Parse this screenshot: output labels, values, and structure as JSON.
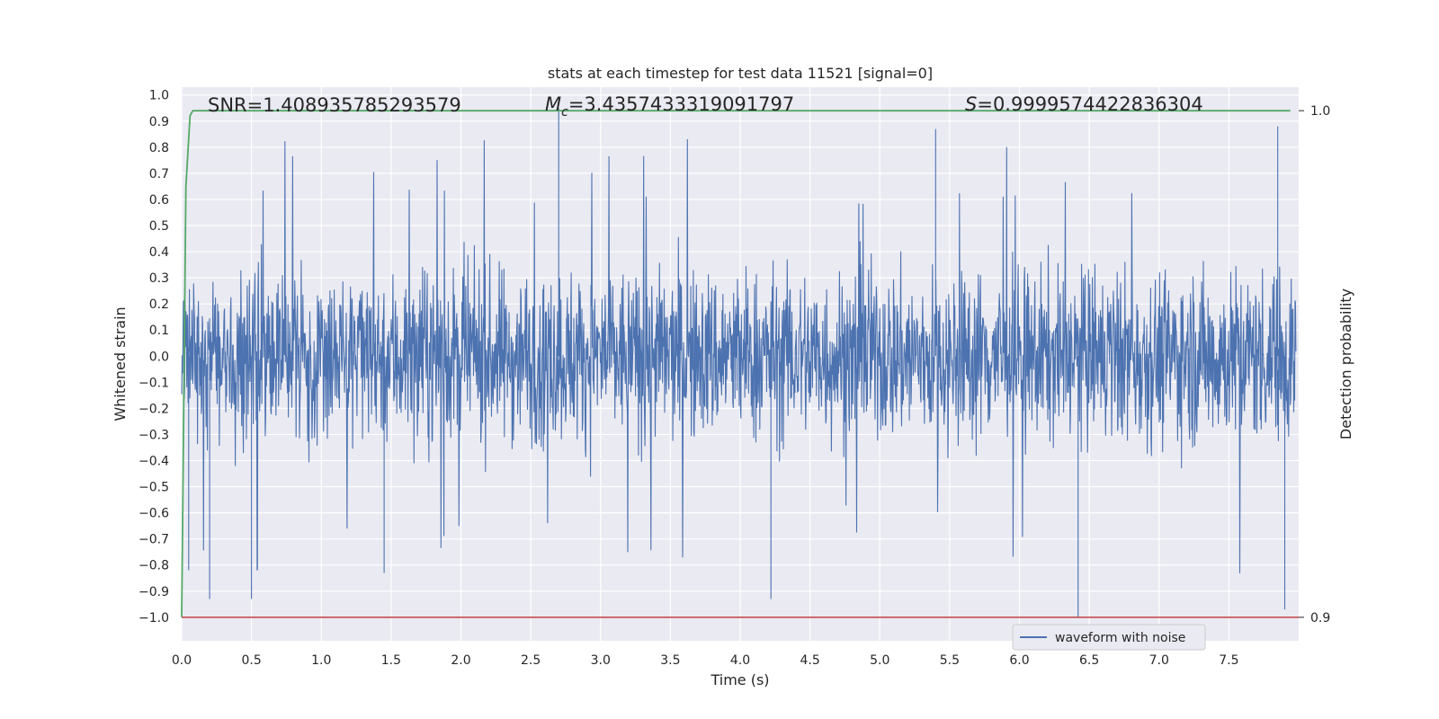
{
  "chart_data": {
    "type": "line",
    "title": "stats at each timestep for test data 11521 [signal=0]",
    "xlabel": "Time (s)",
    "ylabel": "Whitened strain",
    "y2label": "Detection probability",
    "xlim": [
      0.0,
      8.0
    ],
    "ylim": [
      -1.09,
      1.03
    ],
    "y2lim": [
      0.9,
      1.0
    ],
    "x_ticks": [
      "0.0",
      "0.5",
      "1.0",
      "1.5",
      "2.0",
      "2.5",
      "3.0",
      "3.5",
      "4.0",
      "4.5",
      "5.0",
      "5.5",
      "6.0",
      "6.5",
      "7.0",
      "7.5"
    ],
    "y_ticks": [
      "1.0",
      "0.9",
      "0.8",
      "0.7",
      "0.6",
      "0.5",
      "0.4",
      "0.3",
      "0.2",
      "0.1",
      "0.0",
      "-0.1",
      "-0.2",
      "-0.3",
      "-0.4",
      "-0.5",
      "-0.6",
      "-0.7",
      "-0.8",
      "-0.9",
      "-1.0"
    ],
    "y2_ticks": [
      "1.0",
      "0.9"
    ],
    "grid": true,
    "legend_position": "lower-right",
    "annotations": {
      "snr": "SNR=1.408935785293579",
      "mc_symbol": "M",
      "mc_sub": "c",
      "mc_value": "=3.4357433319091797",
      "s_symbol": "S",
      "s_value": "=0.9999574422836304"
    },
    "series": [
      {
        "name": "waveform with noise",
        "color": "#4c72b0",
        "description": "whitened strain noise, amplitude mostly within -0.45..0.45 with spikes up to ~0.95 and down to ~-1.0",
        "peaks": [
          {
            "x": 0.05,
            "y": -0.82
          },
          {
            "x": 0.2,
            "y": -0.93
          },
          {
            "x": 0.5,
            "y": -0.93
          },
          {
            "x": 1.45,
            "y": -0.83
          },
          {
            "x": 2.7,
            "y": 0.95
          },
          {
            "x": 4.22,
            "y": -0.93
          },
          {
            "x": 5.4,
            "y": 0.87
          },
          {
            "x": 6.42,
            "y": -1.0
          },
          {
            "x": 7.85,
            "y": 0.88
          },
          {
            "x": 7.9,
            "y": -0.97
          }
        ]
      },
      {
        "name": "",
        "color": "#55a868",
        "description": "detection probability (secondary axis)",
        "x": [
          0.0,
          0.03,
          0.06,
          0.08,
          7.94
        ],
        "y": [
          0.9,
          0.985,
          0.999,
          1.0,
          1.0
        ]
      },
      {
        "name": "",
        "color": "#c44e52",
        "description": "threshold line at strain -1.0 / probability 0.9",
        "x": [
          0.0,
          8.0
        ],
        "y": [
          -1.0,
          -1.0
        ]
      }
    ]
  }
}
